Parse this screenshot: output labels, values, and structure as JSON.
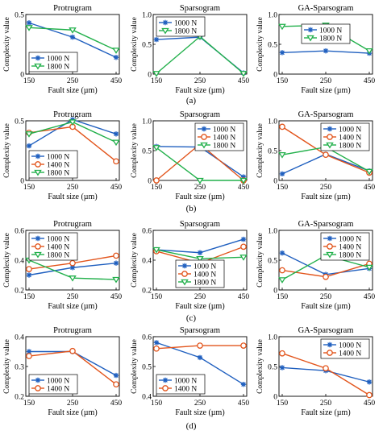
{
  "colors": {
    "series_1000": "#1f5fbf",
    "series_1400": "#e2541b",
    "series_1800": "#22b04b"
  },
  "shared_text": {
    "ylabel": "Complexity value",
    "xlabel": "Fault size (µm)"
  },
  "row_labels": [
    "(a)",
    "(b)",
    "(c)",
    "(d)"
  ],
  "chart_data": [
    {
      "id": "a-protrugram",
      "row": 0,
      "col": 0,
      "type": "line",
      "title": "Protrugram",
      "categories": [
        "150",
        "250",
        "450"
      ],
      "ylim": [
        0,
        0.5
      ],
      "yticks": [
        "0",
        "0.5"
      ],
      "ytick_values": [
        0,
        0.5
      ],
      "legend": "bottom-left",
      "series": [
        {
          "name": "1000 N",
          "key": "series_1000",
          "marker": "star",
          "values": [
            0.43,
            0.31,
            0.14
          ]
        },
        {
          "name": "1800 N",
          "key": "series_1800",
          "marker": "triangle-down",
          "values": [
            0.39,
            0.37,
            0.2
          ]
        }
      ]
    },
    {
      "id": "a-sparsogram",
      "row": 0,
      "col": 1,
      "type": "line",
      "title": "Sparsogram",
      "categories": [
        "150",
        "250",
        "450"
      ],
      "ylim": [
        0,
        1
      ],
      "yticks": [
        "0",
        "0.5",
        "1.0"
      ],
      "ytick_values": [
        0,
        0.5,
        1.0
      ],
      "legend": "top-left",
      "series": [
        {
          "name": "1000 N",
          "key": "series_1000",
          "marker": "star",
          "values": [
            0.58,
            0.62,
            0.02
          ]
        },
        {
          "name": "1800 N",
          "key": "series_1800",
          "marker": "triangle-down",
          "values": [
            0.01,
            0.63,
            0.01
          ]
        }
      ]
    },
    {
      "id": "a-ga-sparsogram",
      "row": 0,
      "col": 2,
      "type": "line",
      "title": "GA-Sparsogram",
      "categories": [
        "150",
        "250",
        "450"
      ],
      "ylim": [
        0,
        1
      ],
      "yticks": [
        "0",
        "0.5",
        "1.0"
      ],
      "ytick_values": [
        0,
        0.5,
        1.0
      ],
      "legend": "top-center",
      "series": [
        {
          "name": "1000 N",
          "key": "series_1000",
          "marker": "star",
          "values": [
            0.36,
            0.39,
            0.35
          ]
        },
        {
          "name": "1800 N",
          "key": "series_1800",
          "marker": "triangle-down",
          "values": [
            0.8,
            0.82,
            0.39
          ]
        }
      ]
    },
    {
      "id": "b-protrugram",
      "row": 1,
      "col": 0,
      "type": "line",
      "title": "Protrugram",
      "categories": [
        "150",
        "250",
        "450"
      ],
      "ylim": [
        0,
        0.5
      ],
      "yticks": [
        "0",
        "0.5"
      ],
      "ytick_values": [
        0,
        0.5
      ],
      "legend": "bottom-left",
      "series": [
        {
          "name": "1000 N",
          "key": "series_1000",
          "marker": "star",
          "values": [
            0.29,
            0.51,
            0.39
          ]
        },
        {
          "name": "1400 N",
          "key": "series_1400",
          "marker": "circle",
          "values": [
            0.4,
            0.45,
            0.16
          ]
        },
        {
          "name": "1800 N",
          "key": "series_1800",
          "marker": "triangle-down",
          "values": [
            0.39,
            0.49,
            0.32
          ]
        }
      ]
    },
    {
      "id": "b-sparsogram",
      "row": 1,
      "col": 1,
      "type": "line",
      "title": "Sparsogram",
      "categories": [
        "150",
        "250",
        "450"
      ],
      "ylim": [
        0,
        1
      ],
      "yticks": [
        "0",
        "0.5",
        "1.0"
      ],
      "ytick_values": [
        0,
        0.5,
        1.0
      ],
      "legend": "top-right",
      "series": [
        {
          "name": "1000 N",
          "key": "series_1000",
          "marker": "star",
          "values": [
            0.57,
            0.56,
            0.06
          ]
        },
        {
          "name": "1400 N",
          "key": "series_1400",
          "marker": "circle",
          "values": [
            0.0,
            0.61,
            0.0
          ]
        },
        {
          "name": "1800 N",
          "key": "series_1800",
          "marker": "triangle-down",
          "values": [
            0.55,
            0.0,
            0.0
          ]
        }
      ]
    },
    {
      "id": "b-ga-sparsogram",
      "row": 1,
      "col": 2,
      "type": "line",
      "title": "GA-Sparsogram",
      "categories": [
        "150",
        "250",
        "450"
      ],
      "ylim": [
        0,
        1
      ],
      "yticks": [
        "0",
        "0.5",
        "1.0"
      ],
      "ytick_values": [
        0,
        0.5,
        1.0
      ],
      "legend": "top-right",
      "series": [
        {
          "name": "1000 N",
          "key": "series_1000",
          "marker": "star",
          "values": [
            0.11,
            0.44,
            0.16
          ]
        },
        {
          "name": "1400 N",
          "key": "series_1400",
          "marker": "circle",
          "values": [
            0.9,
            0.43,
            0.13
          ]
        },
        {
          "name": "1800 N",
          "key": "series_1800",
          "marker": "triangle-down",
          "values": [
            0.43,
            0.56,
            0.15
          ]
        }
      ]
    },
    {
      "id": "c-protrugram",
      "row": 2,
      "col": 0,
      "type": "line",
      "title": "Protrugram",
      "categories": [
        "150",
        "250",
        "450"
      ],
      "ylim": [
        0.2,
        0.6
      ],
      "yticks": [
        "0.2",
        "0.4",
        "0.6"
      ],
      "ytick_values": [
        0.2,
        0.4,
        0.6
      ],
      "legend": "top-left",
      "series": [
        {
          "name": "1000 N",
          "key": "series_1000",
          "marker": "star",
          "values": [
            0.3,
            0.35,
            0.38
          ]
        },
        {
          "name": "1400 N",
          "key": "series_1400",
          "marker": "circle",
          "values": [
            0.34,
            0.38,
            0.43
          ]
        },
        {
          "name": "1800 N",
          "key": "series_1800",
          "marker": "triangle-down",
          "values": [
            0.4,
            0.28,
            0.27
          ]
        }
      ]
    },
    {
      "id": "c-sparsogram",
      "row": 2,
      "col": 1,
      "type": "line",
      "title": "Sparsogram",
      "categories": [
        "150",
        "250",
        "450"
      ],
      "ylim": [
        0.2,
        0.6
      ],
      "yticks": [
        "0.2",
        "0.4",
        "0.6"
      ],
      "ytick_values": [
        0.2,
        0.4,
        0.6
      ],
      "legend": "bottom-center",
      "series": [
        {
          "name": "1000 N",
          "key": "series_1000",
          "marker": "star",
          "values": [
            0.47,
            0.45,
            0.54
          ]
        },
        {
          "name": "1400 N",
          "key": "series_1400",
          "marker": "circle",
          "values": [
            0.46,
            0.38,
            0.49
          ]
        },
        {
          "name": "1800 N",
          "key": "series_1800",
          "marker": "triangle-down",
          "values": [
            0.47,
            0.41,
            0.42
          ]
        }
      ]
    },
    {
      "id": "c-ga-sparsogram",
      "row": 2,
      "col": 2,
      "type": "line",
      "title": "GA-Sparsogram",
      "categories": [
        "150",
        "250",
        "450"
      ],
      "ylim": [
        0,
        1
      ],
      "yticks": [
        "0",
        "0.5",
        "1.0"
      ],
      "ytick_values": [
        0,
        0.5,
        1.0
      ],
      "legend": "top-right",
      "series": [
        {
          "name": "1000 N",
          "key": "series_1000",
          "marker": "star",
          "values": [
            0.62,
            0.26,
            0.36
          ]
        },
        {
          "name": "1400 N",
          "key": "series_1400",
          "marker": "circle",
          "values": [
            0.33,
            0.22,
            0.44
          ]
        },
        {
          "name": "1800 N",
          "key": "series_1800",
          "marker": "triangle-down",
          "values": [
            0.17,
            0.58,
            0.38
          ]
        }
      ]
    },
    {
      "id": "d-protrugram",
      "row": 3,
      "col": 0,
      "type": "line",
      "title": "Protrugram",
      "categories": [
        "150",
        "250",
        "450"
      ],
      "ylim": [
        0.2,
        0.4
      ],
      "yticks": [
        "0.2",
        "0.3",
        "0.4"
      ],
      "ytick_values": [
        0.2,
        0.3,
        0.4
      ],
      "legend": "bottom-left",
      "series": [
        {
          "name": "1000 N",
          "key": "series_1000",
          "marker": "star",
          "values": [
            0.35,
            0.35,
            0.27
          ]
        },
        {
          "name": "1400 N",
          "key": "series_1400",
          "marker": "circle",
          "values": [
            0.335,
            0.352,
            0.24
          ]
        }
      ]
    },
    {
      "id": "d-sparsogram",
      "row": 3,
      "col": 1,
      "type": "line",
      "title": "Sparsogram",
      "categories": [
        "150",
        "250",
        "450"
      ],
      "ylim": [
        0.4,
        0.6
      ],
      "yticks": [
        "0.4",
        "0.5",
        "0.6"
      ],
      "ytick_values": [
        0.4,
        0.5,
        0.6
      ],
      "legend": "bottom-left",
      "series": [
        {
          "name": "1000 N",
          "key": "series_1000",
          "marker": "star",
          "values": [
            0.58,
            0.53,
            0.44
          ]
        },
        {
          "name": "1400 N",
          "key": "series_1400",
          "marker": "circle",
          "values": [
            0.56,
            0.57,
            0.57
          ]
        }
      ]
    },
    {
      "id": "d-ga-sparsogram",
      "row": 3,
      "col": 2,
      "type": "line",
      "title": "GA-Sparsogram",
      "categories": [
        "150",
        "250",
        "450"
      ],
      "ylim": [
        0,
        1
      ],
      "yticks": [
        "0",
        "0.5",
        "1.0"
      ],
      "ytick_values": [
        0,
        0.5,
        1.0
      ],
      "legend": "top-right",
      "series": [
        {
          "name": "1000 N",
          "key": "series_1000",
          "marker": "star",
          "values": [
            0.48,
            0.43,
            0.24
          ]
        },
        {
          "name": "1400 N",
          "key": "series_1400",
          "marker": "circle",
          "values": [
            0.72,
            0.47,
            0.02
          ]
        }
      ]
    }
  ]
}
